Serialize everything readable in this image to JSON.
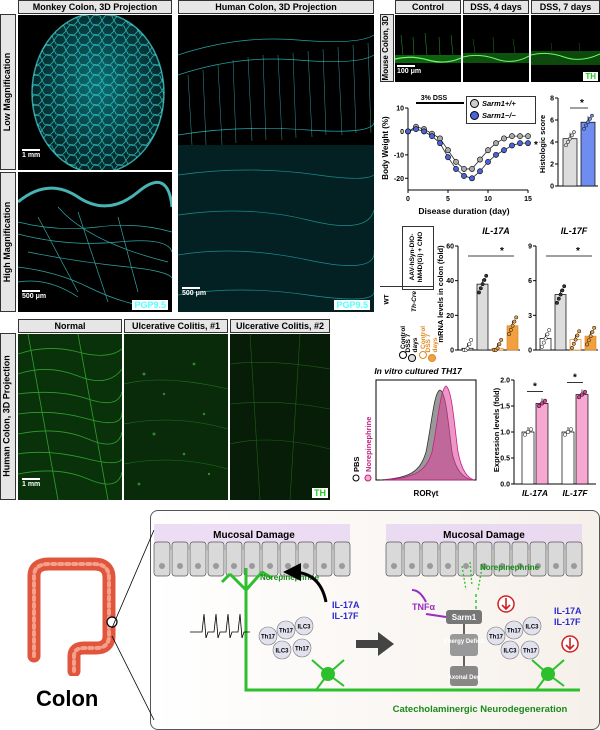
{
  "panel_a": {
    "header_monkey": "Monkey Colon, 3D Projection",
    "header_human": "Human Colon, 3D Projection",
    "row_low": "Low Magnification",
    "row_high": "High Magnification",
    "scale_1mm": "1 mm",
    "scale_500um": "500 μm",
    "scale_500um_b": "500 μm",
    "stain_a": "PGP9.5",
    "stain_b": "PGP9.5"
  },
  "panel_b": {
    "headers": [
      "Control",
      "DSS, 4 days",
      "DSS, 7 days"
    ],
    "side_label": "Mouse Colon, 3D",
    "scale": "100 μm",
    "stain": "TH"
  },
  "panel_c": {
    "header_labels": [
      "Normal",
      "Ulcerative Colitis, #1",
      "Ulcerative Colitis, #2"
    ],
    "side_label": "Human Colon, 3D Projection",
    "scale": "1 mm",
    "stain": "TH"
  },
  "weight_chart": {
    "chart_data": {
      "type": "line",
      "ylabel": "Body Weight (%)",
      "xlabel": "Disease duration (day)",
      "xlim": [
        0,
        15
      ],
      "ylim": [
        -25,
        10
      ],
      "xticks": [
        0,
        5,
        10,
        15
      ],
      "yticks": [
        10,
        0,
        -10,
        -20
      ],
      "annotation": "3% DSS",
      "significance": "*",
      "series": [
        {
          "name": "Sarm1+/+",
          "color": "#aaaaaa",
          "x": [
            0,
            1,
            2,
            3,
            4,
            5,
            6,
            7,
            8,
            9,
            10,
            11,
            12,
            13,
            14,
            15
          ],
          "values": [
            0,
            2,
            1,
            -1,
            -3,
            -8,
            -13,
            -16,
            -16,
            -12,
            -8,
            -5,
            -3,
            -2,
            -2,
            -2
          ]
        },
        {
          "name": "Sarm1−/−",
          "color": "#4b63d8",
          "x": [
            0,
            1,
            2,
            3,
            4,
            5,
            6,
            7,
            8,
            9,
            10,
            11,
            12,
            13,
            14,
            15
          ],
          "values": [
            0,
            1,
            0,
            -2,
            -5,
            -11,
            -16,
            -19,
            -20,
            -17,
            -13,
            -10,
            -8,
            -6,
            -5,
            -5
          ]
        }
      ]
    },
    "legend": [
      "Sarm1+/+",
      "Sarm1−/−"
    ]
  },
  "histo_chart": {
    "chart_data": {
      "type": "bar",
      "ylabel": "Histologic score",
      "ylim": [
        0,
        8
      ],
      "yticks": [
        0,
        2,
        4,
        6,
        8
      ],
      "series": [
        {
          "name": "Sarm1+/+",
          "color": "#dddddd",
          "values": [
            4.3
          ]
        },
        {
          "name": "Sarm1−/−",
          "color": "#6f8df0",
          "values": [
            5.8
          ]
        }
      ],
      "significance": "*"
    }
  },
  "il17_chart": {
    "design": {
      "title_1": "AAV-hSyn-DIO-hM4D(Gi) + CNO",
      "col_wt": "WT",
      "col_thcre": "Th-Cre",
      "legend": [
        "Control",
        "DSS 7 days",
        "Control",
        "DSS 7 days"
      ]
    },
    "chart_data": [
      {
        "type": "bar",
        "title": "IL-17A",
        "ylabel": "mRNA levels in colon (fold)",
        "ylim": [
          0,
          60
        ],
        "yticks": [
          0,
          20,
          40,
          60
        ],
        "categories": [
          "WT Control",
          "WT DSS 7 days",
          "Th-Cre Control",
          "Th-Cre DSS 7 days"
        ],
        "values": [
          1,
          38,
          1,
          14
        ],
        "colors": [
          "#ffffff",
          "#dddddd",
          "#ffffff",
          "#f0a040"
        ],
        "significance": "*"
      },
      {
        "type": "bar",
        "title": "IL-17F",
        "ylim": [
          0,
          9
        ],
        "yticks": [
          0,
          3,
          6,
          9
        ],
        "categories": [
          "WT Control",
          "WT DSS 7 days",
          "Th-Cre Control",
          "Th-Cre DSS 7 days"
        ],
        "values": [
          1,
          4.8,
          0.9,
          1.2
        ],
        "colors": [
          "#ffffff",
          "#dddddd",
          "#ffffff",
          "#f0a040"
        ],
        "significance": "*"
      }
    ]
  },
  "flow_chart": {
    "title": "In vitro cultured TH17",
    "xlabel": "RORγt",
    "legend": [
      "PBS",
      "Norepinephrine"
    ]
  },
  "expr_chart": {
    "chart_data": {
      "type": "bar",
      "ylabel": "Expression levels (fold)",
      "ylim": [
        0,
        2.0
      ],
      "yticks": [
        0,
        0.5,
        1.0,
        1.5,
        2.0
      ],
      "categories": [
        "IL-17A",
        "IL-17F"
      ],
      "series": [
        {
          "name": "PBS",
          "color": "#ffffff",
          "values": [
            1.0,
            1.0
          ]
        },
        {
          "name": "Norepinephrine",
          "color": "#f7a8d0",
          "values": [
            1.55,
            1.72
          ]
        }
      ],
      "significance": [
        "*",
        "*"
      ]
    }
  },
  "schematic": {
    "colon_label": "Colon",
    "left_title": "Mucosal Damage",
    "right_title": "Mucosal Damage",
    "ne_left": "Norepinephrine",
    "ne_right": "Norepinephrine",
    "il17a_left": "IL-17A",
    "il17f_left": "IL-17F",
    "il17a_right": "IL-17A",
    "il17f_right": "IL-17F",
    "th17": "Th17",
    "ilc3": "ILC3",
    "tnf": "TNFα",
    "sarm1": "Sarm1",
    "energy": "Energy Deficit",
    "axonal": "Axonal Deg",
    "neurodeg": "Catecholaminergic Neurodegeneration"
  }
}
